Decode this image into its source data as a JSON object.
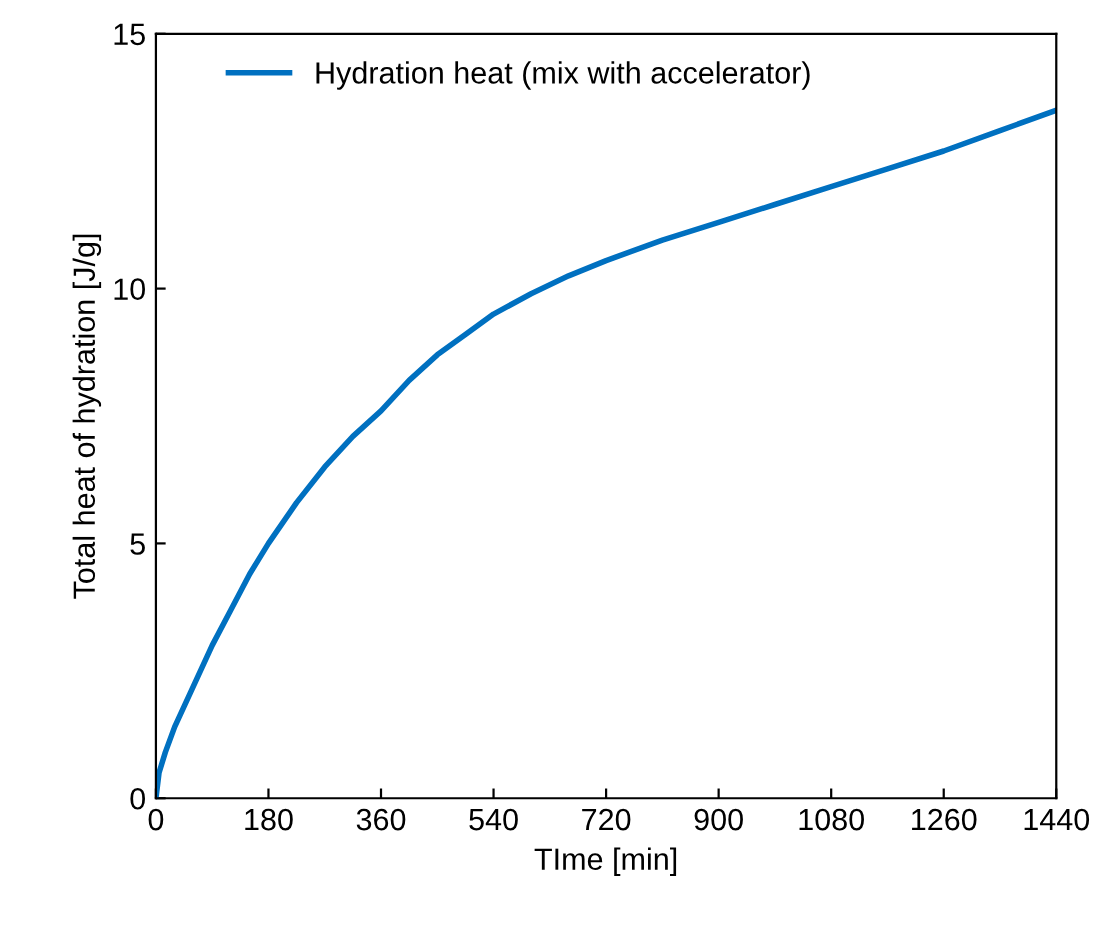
{
  "chart_data": {
    "type": "line",
    "xlabel": "TIme [min]",
    "ylabel": "Total heat of hydration [J/g]",
    "x": [
      0,
      5,
      15,
      30,
      60,
      90,
      120,
      150,
      180,
      225,
      270,
      315,
      360,
      405,
      450,
      495,
      540,
      600,
      660,
      720,
      810,
      900,
      990,
      1080,
      1170,
      1260,
      1350,
      1440
    ],
    "series": [
      {
        "name": "Hydration heat (mix with accelerator)",
        "color": "#0070c0",
        "values": [
          0,
          0.5,
          0.9,
          1.4,
          2.2,
          3.0,
          3.7,
          4.4,
          5.0,
          5.8,
          6.5,
          7.1,
          7.6,
          8.2,
          8.7,
          9.1,
          9.5,
          9.9,
          10.25,
          10.55,
          10.95,
          11.3,
          11.65,
          12.0,
          12.35,
          12.7,
          13.1,
          13.5
        ]
      }
    ],
    "xlim": [
      0,
      1440
    ],
    "xticks": [
      0,
      180,
      360,
      540,
      720,
      900,
      1080,
      1260,
      1440
    ],
    "ylim": [
      0,
      15
    ],
    "yticks": [
      0,
      5,
      10,
      15
    ],
    "grid": false,
    "legend": "top left",
    "marker": "none",
    "line_style": "solid"
  }
}
